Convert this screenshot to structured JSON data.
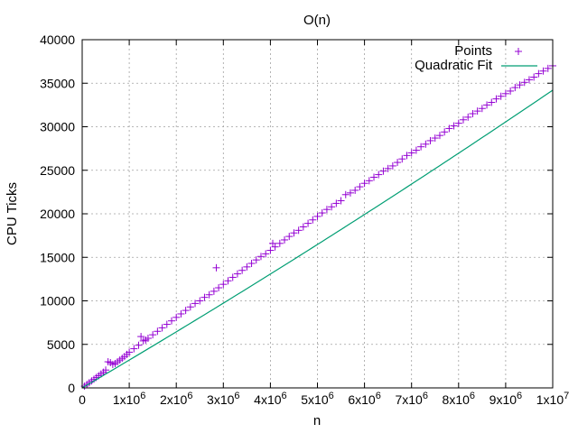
{
  "chart_data": {
    "type": "scatter",
    "title": "O(n)",
    "xlabel": "n",
    "ylabel": "CPU Ticks",
    "xlim": [
      0,
      10000000
    ],
    "ylim": [
      0,
      40000
    ],
    "grid": true,
    "legend_position": "top-right",
    "x_ticks": [
      {
        "value": 0,
        "mantissa": "0",
        "exponent": ""
      },
      {
        "value": 1000000,
        "mantissa": "1x10",
        "exponent": "6"
      },
      {
        "value": 2000000,
        "mantissa": "2x10",
        "exponent": "6"
      },
      {
        "value": 3000000,
        "mantissa": "3x10",
        "exponent": "6"
      },
      {
        "value": 4000000,
        "mantissa": "4x10",
        "exponent": "6"
      },
      {
        "value": 5000000,
        "mantissa": "5x10",
        "exponent": "6"
      },
      {
        "value": 6000000,
        "mantissa": "6x10",
        "exponent": "6"
      },
      {
        "value": 7000000,
        "mantissa": "7x10",
        "exponent": "6"
      },
      {
        "value": 8000000,
        "mantissa": "8x10",
        "exponent": "6"
      },
      {
        "value": 9000000,
        "mantissa": "9x10",
        "exponent": "6"
      },
      {
        "value": 10000000,
        "mantissa": "1x10",
        "exponent": "7"
      }
    ],
    "y_ticks": [
      {
        "value": 0,
        "label": "0"
      },
      {
        "value": 5000,
        "label": "5000"
      },
      {
        "value": 10000,
        "label": "10000"
      },
      {
        "value": 15000,
        "label": "15000"
      },
      {
        "value": 20000,
        "label": "20000"
      },
      {
        "value": 25000,
        "label": "25000"
      },
      {
        "value": 30000,
        "label": "30000"
      },
      {
        "value": 35000,
        "label": "35000"
      },
      {
        "value": 40000,
        "label": "40000"
      }
    ],
    "series": [
      {
        "name": "Points",
        "type": "scatter",
        "marker": "plus",
        "color": "#9400d3",
        "points": [
          [
            50000,
            200
          ],
          [
            100000,
            400
          ],
          [
            150000,
            600
          ],
          [
            200000,
            800
          ],
          [
            250000,
            1000
          ],
          [
            300000,
            1200
          ],
          [
            350000,
            1400
          ],
          [
            400000,
            1600
          ],
          [
            450000,
            1800
          ],
          [
            500000,
            2050
          ],
          [
            550000,
            3000
          ],
          [
            600000,
            2900
          ],
          [
            650000,
            2700
          ],
          [
            700000,
            2800
          ],
          [
            750000,
            3000
          ],
          [
            800000,
            3200
          ],
          [
            850000,
            3400
          ],
          [
            900000,
            3600
          ],
          [
            950000,
            3850
          ],
          [
            1000000,
            4100
          ],
          [
            1100000,
            4500
          ],
          [
            1200000,
            4900
          ],
          [
            1250000,
            5900
          ],
          [
            1300000,
            5400
          ],
          [
            1350000,
            5500
          ],
          [
            1400000,
            5700
          ],
          [
            1500000,
            6100
          ],
          [
            1600000,
            6500
          ],
          [
            1700000,
            6900
          ],
          [
            1800000,
            7300
          ],
          [
            1900000,
            7700
          ],
          [
            2000000,
            8100
          ],
          [
            2100000,
            8500
          ],
          [
            2200000,
            8900
          ],
          [
            2300000,
            9300
          ],
          [
            2400000,
            9700
          ],
          [
            2500000,
            10000
          ],
          [
            2600000,
            10400
          ],
          [
            2700000,
            10700
          ],
          [
            2800000,
            11100
          ],
          [
            2850000,
            13800
          ],
          [
            2900000,
            11500
          ],
          [
            3000000,
            11900
          ],
          [
            3100000,
            12300
          ],
          [
            3200000,
            12700
          ],
          [
            3300000,
            13100
          ],
          [
            3400000,
            13500
          ],
          [
            3500000,
            13900
          ],
          [
            3600000,
            14300
          ],
          [
            3700000,
            14700
          ],
          [
            3800000,
            15100
          ],
          [
            3900000,
            15400
          ],
          [
            4000000,
            15800
          ],
          [
            4050000,
            16600
          ],
          [
            4100000,
            16200
          ],
          [
            4200000,
            16600
          ],
          [
            4300000,
            17000
          ],
          [
            4400000,
            17400
          ],
          [
            4500000,
            17800
          ],
          [
            4600000,
            18100
          ],
          [
            4700000,
            18500
          ],
          [
            4800000,
            18900
          ],
          [
            4900000,
            19300
          ],
          [
            5000000,
            19700
          ],
          [
            5100000,
            20100
          ],
          [
            5200000,
            20500
          ],
          [
            5300000,
            20800
          ],
          [
            5400000,
            21200
          ],
          [
            5500000,
            21500
          ],
          [
            5600000,
            22200
          ],
          [
            5700000,
            22400
          ],
          [
            5800000,
            22700
          ],
          [
            5900000,
            23100
          ],
          [
            6000000,
            23500
          ],
          [
            6100000,
            23800
          ],
          [
            6200000,
            24200
          ],
          [
            6300000,
            24500
          ],
          [
            6400000,
            24900
          ],
          [
            6500000,
            25200
          ],
          [
            6600000,
            25500
          ],
          [
            6700000,
            25900
          ],
          [
            6800000,
            26300
          ],
          [
            6900000,
            26700
          ],
          [
            7000000,
            27000
          ],
          [
            7100000,
            27300
          ],
          [
            7200000,
            27700
          ],
          [
            7300000,
            28000
          ],
          [
            7400000,
            28400
          ],
          [
            7500000,
            28700
          ],
          [
            7600000,
            29000
          ],
          [
            7700000,
            29400
          ],
          [
            7800000,
            29800
          ],
          [
            7900000,
            30100
          ],
          [
            8000000,
            30400
          ],
          [
            8100000,
            30800
          ],
          [
            8200000,
            31100
          ],
          [
            8300000,
            31500
          ],
          [
            8400000,
            31800
          ],
          [
            8500000,
            32100
          ],
          [
            8600000,
            32500
          ],
          [
            8700000,
            32800
          ],
          [
            8800000,
            33200
          ],
          [
            8900000,
            33500
          ],
          [
            9000000,
            33800
          ],
          [
            9100000,
            34100
          ],
          [
            9200000,
            34500
          ],
          [
            9300000,
            34800
          ],
          [
            9400000,
            35100
          ],
          [
            9500000,
            35400
          ],
          [
            9600000,
            35700
          ],
          [
            9700000,
            36100
          ],
          [
            9800000,
            36400
          ],
          [
            9900000,
            36700
          ],
          [
            10000000,
            37000
          ]
        ]
      },
      {
        "name": "Quadratic Fit",
        "type": "line",
        "color": "#009e73",
        "coefficients": {
          "a": 2.5e-11,
          "b": 0.00317,
          "c": 0
        }
      }
    ]
  }
}
